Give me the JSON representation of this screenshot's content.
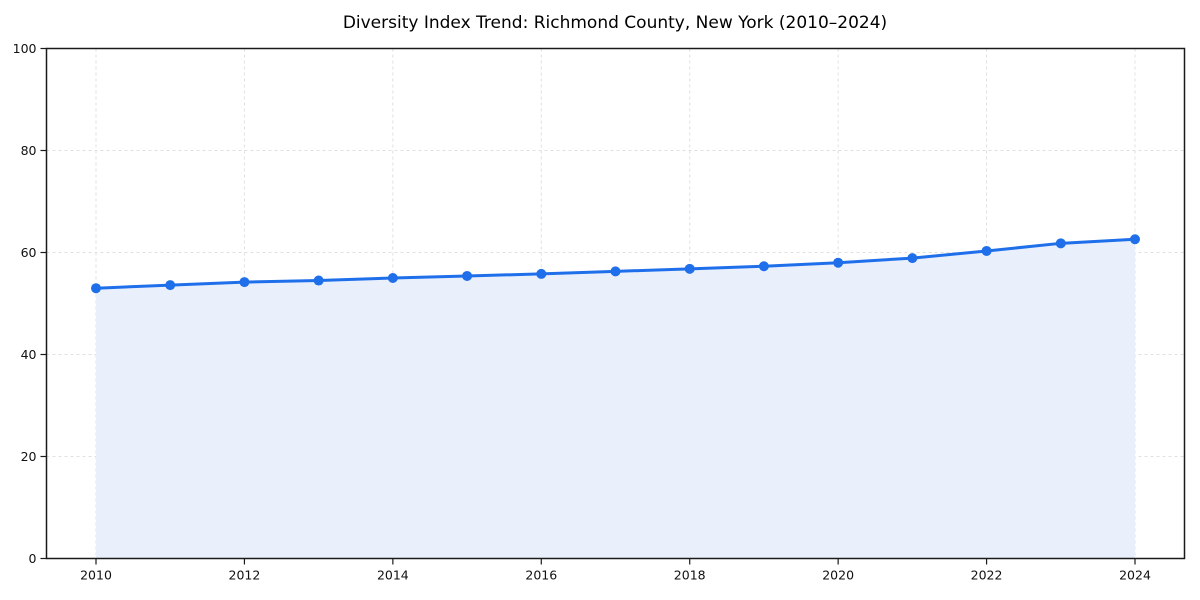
{
  "chart_data": {
    "type": "area",
    "title": "Diversity Index Trend: Richmond County, New York (2010–2024)",
    "x": [
      2010,
      2011,
      2012,
      2013,
      2014,
      2015,
      2016,
      2017,
      2018,
      2019,
      2020,
      2021,
      2022,
      2023,
      2024
    ],
    "values": [
      53.0,
      53.6,
      54.2,
      54.5,
      55.0,
      55.4,
      55.8,
      56.3,
      56.8,
      57.3,
      58.0,
      58.9,
      60.3,
      61.8,
      62.6
    ],
    "xlabel": "",
    "ylabel": "",
    "ylim": [
      0,
      100
    ],
    "yticks": [
      0,
      20,
      40,
      60,
      80,
      100
    ],
    "xticks": [
      2010,
      2012,
      2014,
      2016,
      2018,
      2020,
      2022,
      2024
    ],
    "grid": true,
    "legend": "none",
    "marker": "circle",
    "colors": {
      "line": "#1f6feb",
      "marker": "#1f6feb",
      "fill": "#e9f0fc",
      "grid": "#e0e0e0",
      "spine": "#1a1a1a",
      "text": "#111111",
      "background": "#ffffff"
    }
  }
}
